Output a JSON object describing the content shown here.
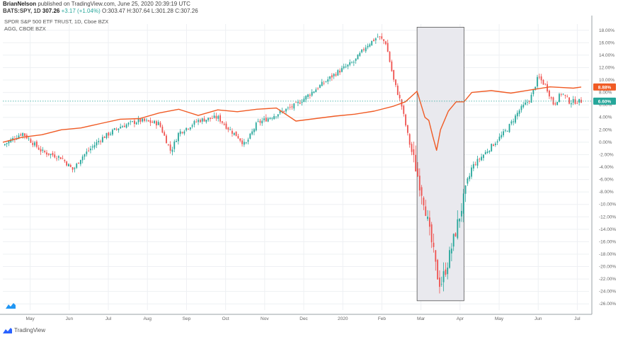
{
  "header": {
    "publisher": "BrianNelson",
    "published_text": "published on TradingView.com, June 25, 2020 20:39:19 UTC",
    "symbol": "BATS:SPY, 1D",
    "last": "307.26",
    "change": "+3.17 (+1.04%)",
    "o_label": "O:",
    "o": "303.47",
    "h_label": "H:",
    "h": "307.64",
    "l_label": "L:",
    "l": "301.28",
    "c_label": "C:",
    "c": "307.26"
  },
  "footer": {
    "brand": "TradingView"
  },
  "colors": {
    "up": "#26a69a",
    "down": "#ef5350",
    "agg": "#f05b25",
    "grid": "#eef0f3",
    "shade": "#e9e9ee",
    "badge_agg": "#f05b25",
    "badge_spy": "#26a69a"
  },
  "chart_data": {
    "type": "line",
    "legend": [
      "SPDR S&P 500 ETF TRUST, 1D, Cboe BZX",
      "AGG, CBOE BZX"
    ],
    "y_tick_labels": [
      "18.00%",
      "16.00%",
      "14.00%",
      "12.00%",
      "10.00%",
      "8.00%",
      "6.00%",
      "4.00%",
      "2.00%",
      "0.00%",
      "-2.00%",
      "-4.00%",
      "-6.00%",
      "-8.00%",
      "-10.00%",
      "-12.00%",
      "-14.00%",
      "-16.00%",
      "-18.00%",
      "-20.00%",
      "-22.00%",
      "-24.00%",
      "-26.00%"
    ],
    "ylim": [
      -27,
      19
    ],
    "x_tick_labels": [
      "May",
      "Jun",
      "Jul",
      "Aug",
      "Sep",
      "Oct",
      "Nov",
      "Dec",
      "2020",
      "Feb",
      "Mar",
      "Apr",
      "May",
      "Jun",
      "Jul"
    ],
    "x_tick_months": [
      1,
      2,
      3,
      4,
      5,
      6,
      7,
      8,
      9,
      10,
      11,
      12,
      13,
      14,
      15
    ],
    "xlim": [
      0,
      15
    ],
    "badges": [
      {
        "label": "8.88%",
        "value": 8.88,
        "series": "AGG"
      },
      {
        "label": "6.60%",
        "value": 6.6,
        "series": "SPY"
      }
    ],
    "highlight_region": {
      "x_start": 10.6,
      "x_end": 11.8,
      "y_top": 18.5,
      "y_bottom": -25.5
    },
    "series": [
      {
        "name": "SPDR S&P 500 ETF TRUST",
        "kind": "candlestick",
        "x": [
          0,
          0.5,
          1,
          1.5,
          1.8,
          2,
          2.5,
          3,
          3.5,
          4,
          4.3,
          4.5,
          5,
          5.5,
          5.8,
          6,
          6.2,
          6.5,
          7,
          7.5,
          8,
          8.5,
          9,
          9.3,
          9.6,
          9.8,
          10,
          10.2,
          10.4,
          10.6,
          10.8,
          10.9,
          11,
          11.1,
          11.2,
          11.4,
          11.6,
          11.8,
          12,
          12.3,
          12.6,
          12.9,
          13.2,
          13.5,
          13.7,
          13.9,
          14.1,
          14.3,
          14.5,
          14.8
        ],
        "y": [
          -0.5,
          1.5,
          -1.5,
          -2.5,
          -4.5,
          -2.5,
          0.5,
          2.5,
          3.5,
          3,
          -1.5,
          1.5,
          3.5,
          4,
          2,
          1,
          -0.5,
          3,
          4.5,
          6,
          8.5,
          11,
          13,
          15.5,
          17,
          16,
          10,
          6,
          0,
          -5,
          -10,
          -14,
          -17,
          -21,
          -23,
          -19,
          -14,
          -9,
          -4,
          -2,
          0,
          2,
          5,
          7,
          10.5,
          9,
          6,
          8,
          6.5,
          6.6
        ]
      },
      {
        "name": "AGG",
        "kind": "line",
        "x": [
          0,
          0.5,
          1,
          1.5,
          2,
          2.5,
          3,
          3.5,
          4,
          4.5,
          5,
          5.5,
          6,
          6.5,
          7,
          7.5,
          8,
          8.5,
          9,
          9.5,
          10,
          10.3,
          10.6,
          10.8,
          10.9,
          11,
          11.1,
          11.2,
          11.4,
          11.6,
          11.8,
          12,
          12.5,
          13,
          13.5,
          14,
          14.3,
          14.6,
          14.8
        ],
        "y": [
          0,
          0.8,
          1.2,
          2,
          2.3,
          3,
          3.7,
          3.8,
          4.7,
          5.3,
          4.3,
          5.2,
          4.9,
          5.3,
          5.5,
          3.4,
          3.8,
          4.2,
          4.5,
          5,
          5.8,
          6.5,
          8.2,
          4,
          3.5,
          1,
          -1.3,
          2,
          5,
          6.5,
          6.5,
          8,
          8.3,
          7.9,
          8.4,
          8.9,
          8.8,
          8.7,
          8.88
        ]
      }
    ]
  }
}
